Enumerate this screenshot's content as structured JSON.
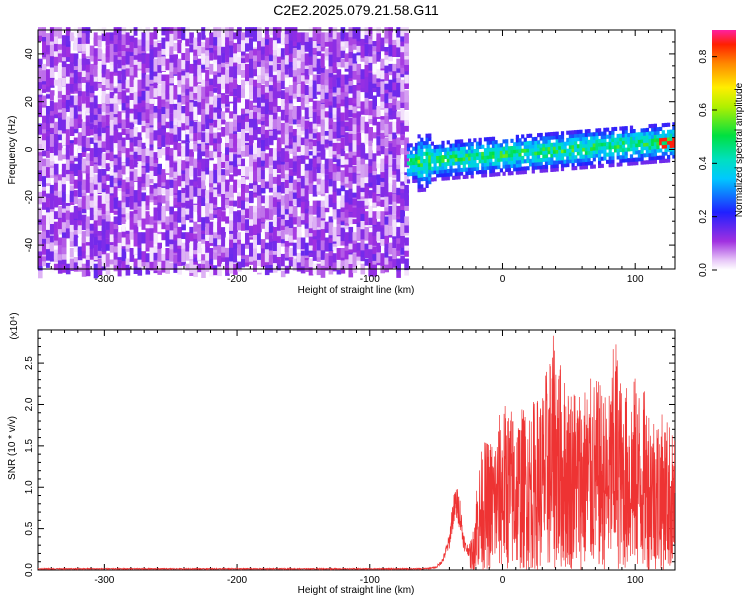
{
  "title": "C2E2.2025.079.21.58.G11",
  "chart_data": [
    {
      "type": "heatmap",
      "xlabel": "Height of straight line (km)",
      "ylabel": "Frequency (Hz)",
      "xlim": [
        -350,
        130
      ],
      "ylim": [
        -50,
        50
      ],
      "xticks": [
        -300,
        -200,
        -100,
        0,
        100
      ],
      "yticks": [
        -40,
        -20,
        0,
        20,
        40
      ],
      "colorbar": {
        "label": "Normalized spectral amplitude",
        "range": [
          0.0,
          0.9
        ],
        "ticks": [
          0.0,
          0.2,
          0.4,
          0.6,
          0.8
        ],
        "colormap": "rainbow (magenta–blue–cyan–green–yellow–red)"
      },
      "regions": [
        {
          "x_range": [
            -350,
            -72
          ],
          "y_range": [
            -50,
            50
          ],
          "amplitude": [
            0.0,
            0.15
          ],
          "texture": "scattered purple speckle"
        },
        {
          "x_range": [
            -72,
            130
          ],
          "y_center_at_left": -6,
          "y_center_at_right": 3,
          "half_width": 8,
          "amplitude": [
            0.15,
            0.55
          ],
          "texture": "narrow band"
        }
      ]
    },
    {
      "type": "line",
      "xlabel": "Height of straight line (km)",
      "ylabel": "SNR (10 * v/v)",
      "y_multiplier": "(x10⁴)",
      "xlim": [
        -350,
        130
      ],
      "ylim": [
        0,
        2.9
      ],
      "xticks": [
        -300,
        -200,
        -100,
        0,
        100
      ],
      "yticks": [
        0.0,
        0.5,
        1.0,
        1.5,
        2.0,
        2.5
      ],
      "color": "#ee3333",
      "series": [
        {
          "x": [
            -350,
            -60,
            -50,
            -45,
            -40,
            -38,
            -35,
            -32,
            -30,
            -28,
            -25,
            -22,
            -20,
            -15,
            -10,
            -5,
            0,
            10,
            20,
            30,
            35,
            40,
            45,
            50,
            60,
            70,
            80,
            85,
            90,
            100,
            110,
            115,
            120,
            125,
            130
          ],
          "envelope": [
            0.02,
            0.02,
            0.04,
            0.15,
            0.45,
            0.8,
            1.05,
            0.9,
            0.55,
            0.35,
            0.3,
            0.5,
            1.05,
            1.55,
            1.6,
            1.7,
            2.05,
            1.95,
            2.0,
            2.2,
            2.6,
            2.95,
            2.4,
            2.3,
            2.25,
            2.35,
            2.1,
            2.95,
            2.2,
            2.35,
            2.1,
            1.95,
            1.9,
            1.85,
            1.6
          ]
        }
      ]
    }
  ]
}
